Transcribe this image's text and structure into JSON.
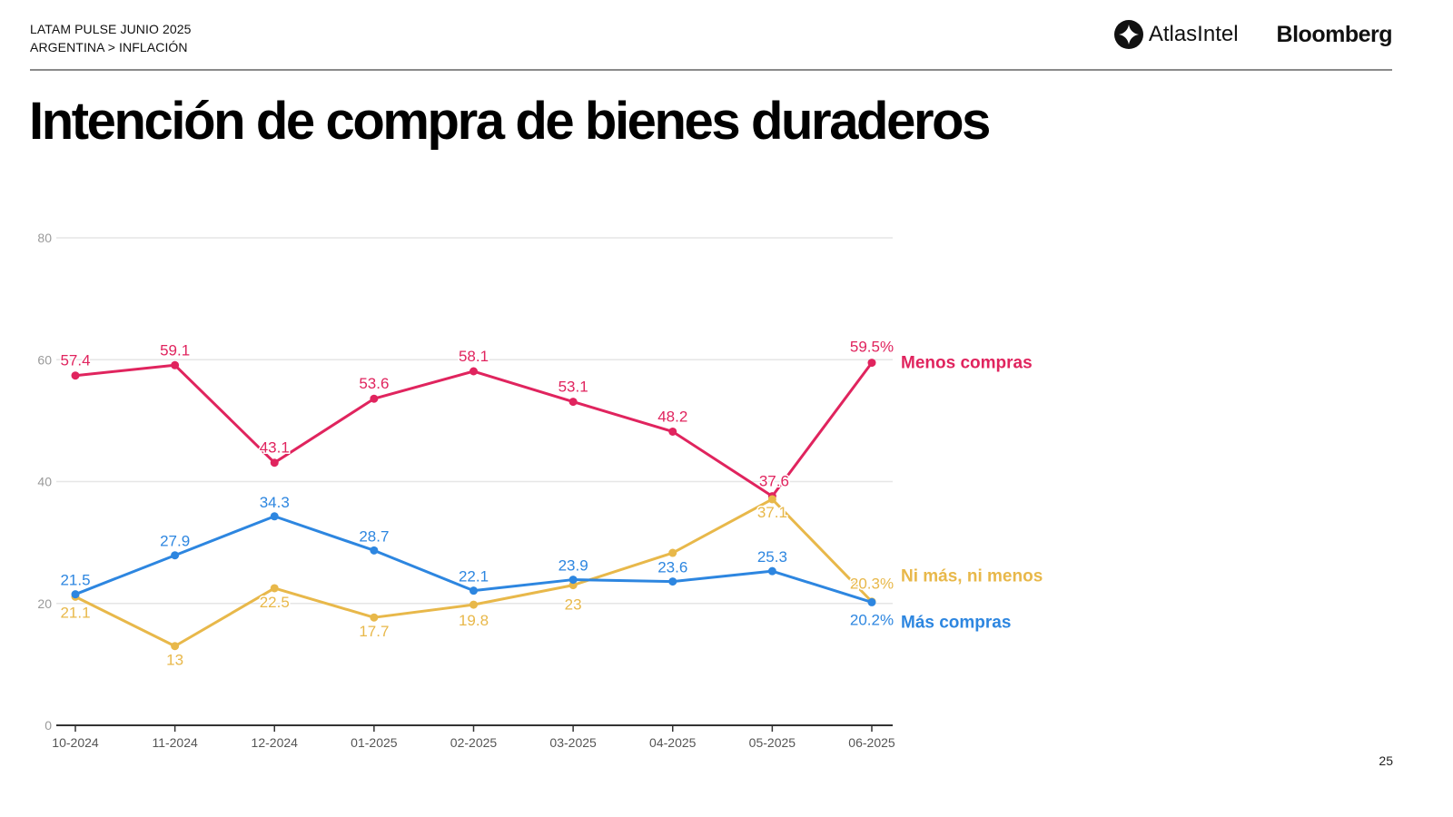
{
  "header": {
    "breadcrumb_line1": "LATAM PULSE JUNIO 2025",
    "breadcrumb_line2": "ARGENTINA > INFLACIÓN",
    "logos": {
      "atlas": "AtlasIntel",
      "atlas_icon": "atlasintel-logo-icon",
      "bloomberg": "Bloomberg"
    }
  },
  "page": {
    "title": "Intención de compra de bienes duraderos",
    "number": "25"
  },
  "colors": {
    "menos": "#e0245e",
    "ni": "#e8b84a",
    "mas": "#2d86e0",
    "grid": "#e6e6e6",
    "axis": "#333333",
    "tick_text": "#9a9a9a"
  },
  "chart_data": {
    "type": "line",
    "title": "Intención de compra de bienes duraderos",
    "xlabel": "",
    "ylabel": "",
    "ylim": [
      0,
      80
    ],
    "yticks": [
      0,
      20,
      40,
      60,
      80
    ],
    "grid": true,
    "legend": "right-end-labels",
    "categories": [
      "10-2024",
      "11-2024",
      "12-2024",
      "01-2025",
      "02-2025",
      "03-2025",
      "04-2025",
      "05-2025",
      "06-2025"
    ],
    "series": [
      {
        "name": "Menos compras",
        "key": "menos",
        "values": [
          57.4,
          59.1,
          43.1,
          53.6,
          58.1,
          53.1,
          48.2,
          37.6,
          59.5
        ],
        "labels": [
          "57.4",
          "59.1",
          "43.1",
          "53.6",
          "58.1",
          "53.1",
          "48.2",
          "37.6",
          "59.5%"
        ]
      },
      {
        "name": "Ni más, ni menos",
        "key": "ni",
        "values": [
          21.1,
          13,
          22.5,
          17.7,
          19.8,
          23,
          28.3,
          37.1,
          20.3
        ],
        "labels": [
          "21.1",
          "13",
          "22.5",
          "17.7",
          "19.8",
          "23",
          "",
          "37.1",
          "20.3%"
        ]
      },
      {
        "name": "Más compras",
        "key": "mas",
        "values": [
          21.5,
          27.9,
          34.3,
          28.7,
          22.1,
          23.9,
          23.6,
          25.3,
          20.2
        ],
        "labels": [
          "21.5",
          "27.9",
          "34.3",
          "28.7",
          "22.1",
          "23.9",
          "23.6",
          "25.3",
          "20.2%"
        ]
      }
    ]
  }
}
